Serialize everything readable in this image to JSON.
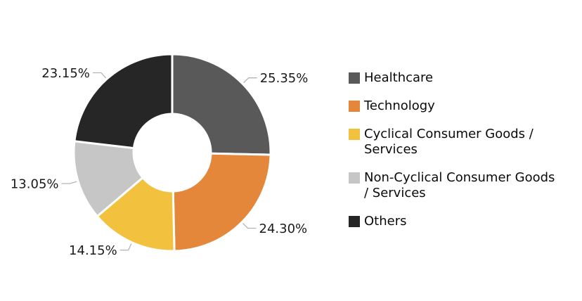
{
  "chart_data": {
    "type": "pie",
    "title": "",
    "donut": true,
    "direction": "clockwise",
    "start_angle_deg": 0,
    "legend_position": "right",
    "background_color": "#ffffff",
    "leader_line_color": "#b3b3b3",
    "label_color": "#1a1a1a",
    "series": [
      {
        "name": "Healthcare",
        "value": 25.35,
        "label": "25.35%",
        "color": "#595959"
      },
      {
        "name": "Technology",
        "value": 24.3,
        "label": "24.30%",
        "color": "#e4873b"
      },
      {
        "name": "Cyclical Consumer Goods / Services",
        "value": 14.15,
        "label": "14.15%",
        "color": "#f2c23e"
      },
      {
        "name": "Non-Cyclical Consumer Goods / Services",
        "value": 13.05,
        "label": "13.05%",
        "color": "#c6c6c6"
      },
      {
        "name": "Others",
        "value": 23.15,
        "label": "23.15%",
        "color": "#262626"
      }
    ]
  }
}
